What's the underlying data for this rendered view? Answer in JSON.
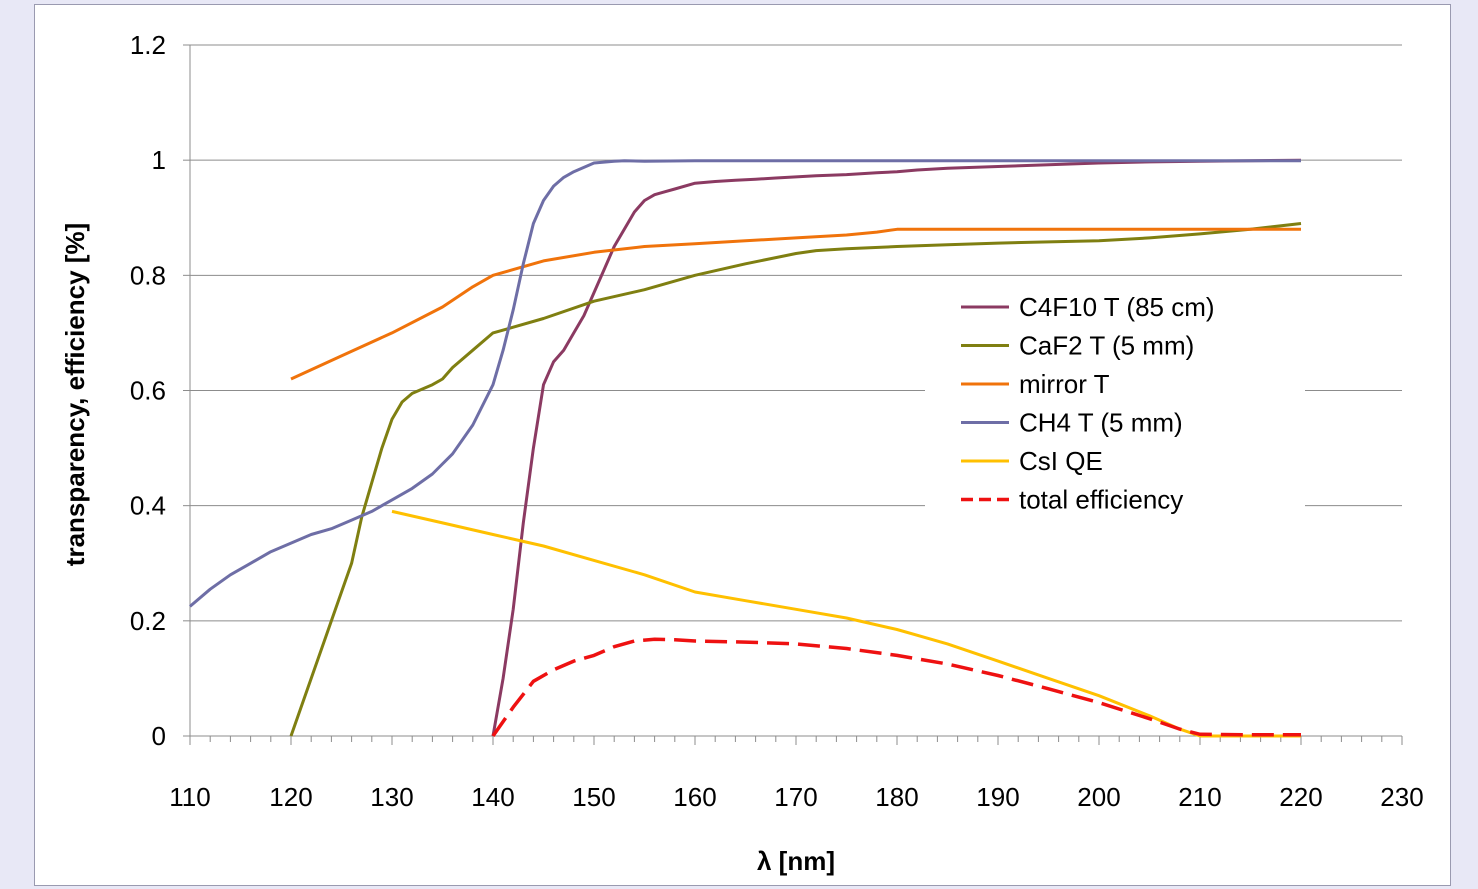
{
  "chart_data": {
    "type": "line",
    "title": "",
    "xlabel": "λ [nm]",
    "ylabel": "transparency, efficiency [%]",
    "xlim": [
      110,
      230
    ],
    "ylim": [
      0,
      1.2
    ],
    "xticks": [
      110,
      120,
      130,
      140,
      150,
      160,
      170,
      180,
      190,
      200,
      210,
      220,
      230
    ],
    "yticks": [
      0,
      0.2,
      0.4,
      0.6,
      0.8,
      1,
      1.2
    ],
    "ytick_labels": [
      "0",
      "0.2",
      "0.4",
      "0.6",
      "0.8",
      "1",
      "1.2"
    ],
    "grid": "horizontal",
    "legend_position": "right",
    "series": [
      {
        "name": "C4F10 T (85 cm)",
        "color": "#8b3a62",
        "dash": "solid",
        "x": [
          140,
          141,
          142,
          143,
          144,
          145,
          146,
          147,
          148,
          149,
          150,
          151,
          152,
          153,
          154,
          155,
          156,
          157,
          158,
          160,
          162,
          164,
          166,
          168,
          170,
          172,
          175,
          178,
          180,
          182,
          185,
          190,
          195,
          200,
          205,
          210,
          215,
          220
        ],
        "y": [
          0,
          0.1,
          0.22,
          0.37,
          0.5,
          0.61,
          0.65,
          0.67,
          0.7,
          0.73,
          0.77,
          0.81,
          0.85,
          0.88,
          0.91,
          0.93,
          0.94,
          0.945,
          0.95,
          0.96,
          0.963,
          0.965,
          0.967,
          0.969,
          0.971,
          0.973,
          0.975,
          0.978,
          0.98,
          0.983,
          0.986,
          0.989,
          0.992,
          0.995,
          0.997,
          0.998,
          0.999,
          1.0
        ]
      },
      {
        "name": "CaF2 T (5 mm)",
        "color": "#7f7f11",
        "dash": "solid",
        "x": [
          120,
          122,
          124,
          126,
          127,
          128,
          129,
          130,
          131,
          132,
          134,
          135,
          136,
          138,
          140,
          142,
          145,
          150,
          155,
          160,
          165,
          170,
          172,
          175,
          180,
          185,
          190,
          195,
          200,
          205,
          210,
          215,
          220
        ],
        "y": [
          0,
          0.1,
          0.2,
          0.3,
          0.38,
          0.44,
          0.5,
          0.55,
          0.58,
          0.595,
          0.61,
          0.62,
          0.64,
          0.67,
          0.7,
          0.71,
          0.725,
          0.755,
          0.775,
          0.8,
          0.82,
          0.838,
          0.843,
          0.846,
          0.85,
          0.853,
          0.856,
          0.858,
          0.86,
          0.865,
          0.872,
          0.88,
          0.89
        ]
      },
      {
        "name": "mirror T",
        "color": "#f0730b",
        "dash": "solid",
        "x": [
          120,
          125,
          130,
          135,
          138,
          140,
          142,
          145,
          150,
          155,
          160,
          165,
          170,
          175,
          178,
          180,
          190,
          200,
          210,
          220
        ],
        "y": [
          0.62,
          0.66,
          0.7,
          0.745,
          0.78,
          0.8,
          0.81,
          0.825,
          0.84,
          0.85,
          0.855,
          0.86,
          0.865,
          0.87,
          0.875,
          0.88,
          0.88,
          0.88,
          0.88,
          0.88
        ]
      },
      {
        "name": "CH4 T (5 mm)",
        "color": "#6e6ea6",
        "dash": "solid",
        "x": [
          110,
          112,
          114,
          116,
          118,
          120,
          122,
          124,
          126,
          128,
          130,
          132,
          134,
          136,
          138,
          140,
          141,
          142,
          143,
          144,
          145,
          146,
          147,
          148,
          150,
          152,
          153,
          155,
          160,
          170,
          180,
          190,
          200,
          210,
          220
        ],
        "y": [
          0.225,
          0.255,
          0.28,
          0.3,
          0.32,
          0.335,
          0.35,
          0.36,
          0.375,
          0.39,
          0.41,
          0.43,
          0.455,
          0.49,
          0.54,
          0.61,
          0.67,
          0.74,
          0.82,
          0.89,
          0.93,
          0.955,
          0.97,
          0.98,
          0.995,
          0.998,
          0.999,
          0.998,
          0.999,
          0.999,
          0.999,
          0.999,
          0.999,
          0.999,
          0.999
        ]
      },
      {
        "name": "CsI QE",
        "color": "#ffc000",
        "dash": "solid",
        "x": [
          130,
          135,
          140,
          145,
          150,
          155,
          160,
          165,
          170,
          175,
          180,
          185,
          190,
          195,
          200,
          205,
          208,
          210,
          215,
          220
        ],
        "y": [
          0.39,
          0.37,
          0.35,
          0.33,
          0.305,
          0.28,
          0.25,
          0.235,
          0.22,
          0.205,
          0.185,
          0.16,
          0.13,
          0.1,
          0.07,
          0.035,
          0.012,
          0.0,
          0.0,
          0.0
        ]
      },
      {
        "name": "total efficiency",
        "color": "#ee1111",
        "dash": "dashed",
        "x": [
          140,
          142,
          144,
          146,
          148,
          150,
          152,
          154,
          156,
          158,
          160,
          165,
          170,
          175,
          180,
          185,
          190,
          195,
          200,
          205,
          208,
          210,
          215,
          220
        ],
        "y": [
          0,
          0.05,
          0.095,
          0.115,
          0.13,
          0.14,
          0.155,
          0.165,
          0.168,
          0.167,
          0.165,
          0.163,
          0.16,
          0.152,
          0.14,
          0.125,
          0.105,
          0.082,
          0.058,
          0.03,
          0.012,
          0.003,
          0.002,
          0.002
        ]
      }
    ]
  }
}
